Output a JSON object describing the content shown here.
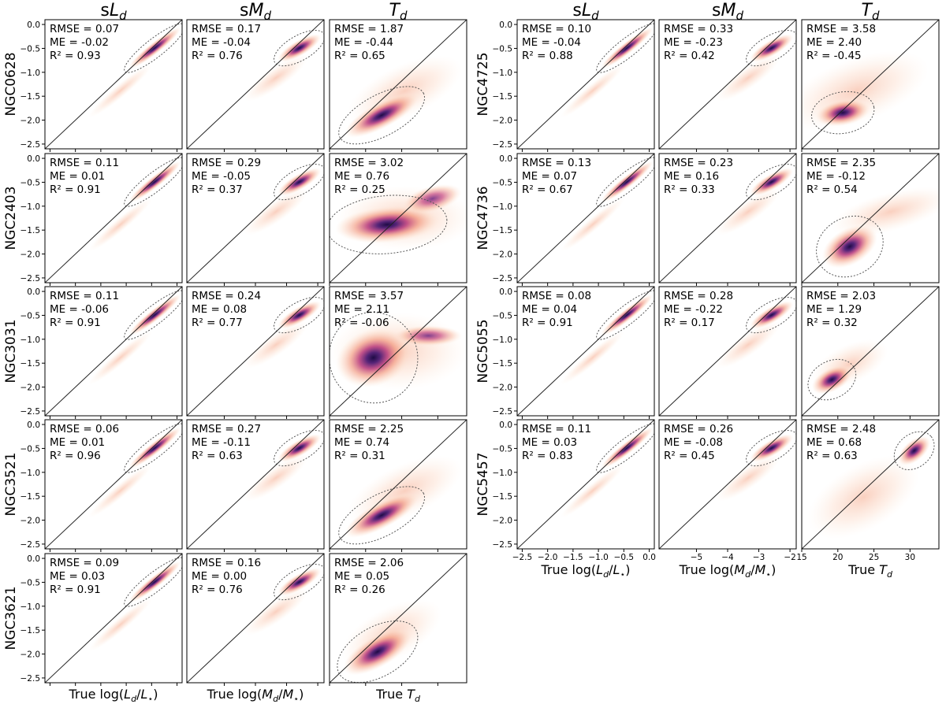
{
  "chart_data": {
    "type": "heatmap",
    "description_columns": [
      "sL_d",
      "sM_d",
      "T_d"
    ],
    "columns": [
      {
        "key": "sL",
        "title_prefix": "s",
        "title_var": "L",
        "title_sub": "d",
        "xlabel": "True log(L_d/L_*)",
        "xlabel_parts": [
          "True log(",
          "L",
          "d",
          "/",
          "L",
          "⋆",
          ")"
        ],
        "ylim": [
          -2.6,
          0.1
        ],
        "xlim": [
          -2.6,
          0.1
        ],
        "xticks": [
          "−2.5",
          "−2.0",
          "−1.5",
          "−1.0",
          "−0.5",
          "0.0"
        ],
        "xtick_values": [
          -2.5,
          -2.0,
          -1.5,
          -1.0,
          -0.5,
          0.0
        ]
      },
      {
        "key": "sM",
        "title_prefix": "s",
        "title_var": "M",
        "title_sub": "d",
        "xlabel": "True log(M_d/M_*)",
        "xlabel_parts": [
          "True log(",
          "M",
          "d",
          "/",
          "M",
          "⋆",
          ")"
        ],
        "xlim": [
          -6.2,
          -1.8
        ],
        "xticks": [
          "−5",
          "−4",
          "−3",
          "−2"
        ],
        "xtick_values": [
          -5,
          -4,
          -3,
          -2
        ]
      },
      {
        "key": "T",
        "title_prefix": "",
        "title_var": "T",
        "title_sub": "d",
        "xlabel": "True T_d",
        "xlabel_parts": [
          "True ",
          "T",
          "d"
        ],
        "xlim": [
          15,
          34
        ],
        "xticks": [
          "15",
          "20",
          "25",
          "30"
        ],
        "xtick_values": [
          15,
          20,
          25,
          30
        ]
      }
    ],
    "yticks": [
      "0.0",
      "−0.5",
      "−1.0",
      "−1.5",
      "−2.0",
      "−2.5"
    ],
    "ytick_values": [
      0.0,
      -0.5,
      -1.0,
      -1.5,
      -2.0,
      -2.5
    ],
    "stat_labels": {
      "rmse": "RMSE = ",
      "me": "ME = ",
      "r2": "R² = "
    },
    "galaxies": [
      {
        "name": "NGC0628",
        "group": "left",
        "row": 0,
        "stats": [
          [
            "0.07",
            "-0.02",
            "0.93"
          ],
          [
            "0.17",
            "-0.04",
            "0.76"
          ],
          [
            "1.87",
            "-0.44",
            "0.65"
          ]
        ]
      },
      {
        "name": "NGC2403",
        "group": "left",
        "row": 1,
        "stats": [
          [
            "0.11",
            "0.01",
            "0.91"
          ],
          [
            "0.29",
            "-0.05",
            "0.37"
          ],
          [
            "3.02",
            "0.76",
            "0.25"
          ]
        ]
      },
      {
        "name": "NGC3031",
        "group": "left",
        "row": 2,
        "stats": [
          [
            "0.11",
            "-0.06",
            "0.91"
          ],
          [
            "0.24",
            "0.08",
            "0.77"
          ],
          [
            "3.57",
            "2.11",
            "-0.06"
          ]
        ]
      },
      {
        "name": "NGC3521",
        "group": "left",
        "row": 3,
        "stats": [
          [
            "0.06",
            "0.01",
            "0.96"
          ],
          [
            "0.27",
            "-0.11",
            "0.63"
          ],
          [
            "2.25",
            "0.74",
            "0.31"
          ]
        ]
      },
      {
        "name": "NGC3621",
        "group": "left",
        "row": 4,
        "stats": [
          [
            "0.09",
            "0.03",
            "0.91"
          ],
          [
            "0.16",
            "0.00",
            "0.76"
          ],
          [
            "2.06",
            "0.05",
            "0.26"
          ]
        ]
      },
      {
        "name": "NGC4725",
        "group": "right",
        "row": 0,
        "stats": [
          [
            "0.10",
            "-0.04",
            "0.88"
          ],
          [
            "0.33",
            "-0.23",
            "0.42"
          ],
          [
            "3.58",
            "2.40",
            "-0.45"
          ]
        ]
      },
      {
        "name": "NGC4736",
        "group": "right",
        "row": 1,
        "stats": [
          [
            "0.13",
            "0.07",
            "0.67"
          ],
          [
            "0.23",
            "0.16",
            "0.33"
          ],
          [
            "2.35",
            "-0.12",
            "0.54"
          ]
        ]
      },
      {
        "name": "NGC5055",
        "group": "right",
        "row": 2,
        "stats": [
          [
            "0.08",
            "0.04",
            "0.91"
          ],
          [
            "0.28",
            "-0.22",
            "0.17"
          ],
          [
            "2.03",
            "1.29",
            "0.32"
          ]
        ]
      },
      {
        "name": "NGC5457",
        "group": "right",
        "row": 3,
        "stats": [
          [
            "0.11",
            "0.03",
            "0.83"
          ],
          [
            "0.26",
            "-0.08",
            "0.45"
          ],
          [
            "2.48",
            "0.68",
            "0.63"
          ]
        ]
      }
    ],
    "colormap": "magma_r",
    "colors": {
      "low": "#fde9d9",
      "mid": "#f08a6e",
      "high": "#b7377a",
      "peak": "#2a0f4f",
      "line": "#222222",
      "contour": "#555555"
    }
  }
}
